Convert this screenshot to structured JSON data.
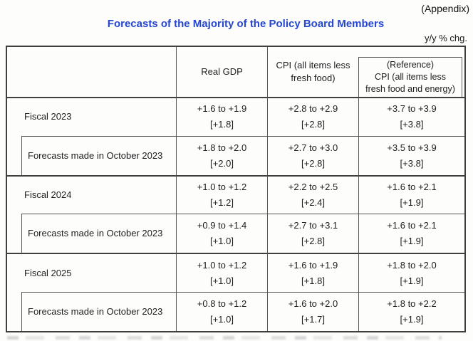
{
  "page": {
    "appendix_label": "(Appendix)",
    "title": "Forecasts of the Majority of the Policy Board Members",
    "unit_label": "y/y % chg.",
    "title_color": "#2546cf",
    "border_color": "#3f3f3f"
  },
  "table": {
    "headers": [
      {
        "lines": [
          "Real GDP"
        ]
      },
      {
        "lines": [
          "CPI (all items less",
          "fresh food)"
        ]
      },
      {
        "lines": [
          "(Reference)",
          "CPI (all items less",
          "fresh food and energy)"
        ],
        "boxed": true
      }
    ],
    "groups": [
      {
        "main": {
          "label": "Fiscal 2023",
          "values": [
            {
              "range": "+1.6 to +1.9",
              "median": "[+1.8]"
            },
            {
              "range": "+2.8 to +2.9",
              "median": "[+2.8]"
            },
            {
              "range": "+3.7 to +3.9",
              "median": "[+3.8]"
            }
          ]
        },
        "forecast": {
          "label": "Forecasts made in October 2023",
          "values": [
            {
              "range": "+1.8 to +2.0",
              "median": "[+2.0]"
            },
            {
              "range": "+2.7 to +3.0",
              "median": "[+2.8]"
            },
            {
              "range": "+3.5 to +3.9",
              "median": "[+3.8]"
            }
          ]
        }
      },
      {
        "main": {
          "label": "Fiscal 2024",
          "values": [
            {
              "range": "+1.0 to +1.2",
              "median": "[+1.2]"
            },
            {
              "range": "+2.2 to +2.5",
              "median": "[+2.4]"
            },
            {
              "range": "+1.6 to +2.1",
              "median": "[+1.9]"
            }
          ]
        },
        "forecast": {
          "label": "Forecasts made in October 2023",
          "values": [
            {
              "range": "+0.9 to +1.4",
              "median": "[+1.0]"
            },
            {
              "range": "+2.7 to +3.1",
              "median": "[+2.8]"
            },
            {
              "range": "+1.6 to +2.1",
              "median": "[+1.9]"
            }
          ]
        }
      },
      {
        "main": {
          "label": "Fiscal 2025",
          "values": [
            {
              "range": "+1.0 to +1.2",
              "median": "[+1.0]"
            },
            {
              "range": "+1.6 to +1.9",
              "median": "[+1.8]"
            },
            {
              "range": "+1.8 to +2.0",
              "median": "[+1.9]"
            }
          ]
        },
        "forecast": {
          "label": "Forecasts made in October 2023",
          "values": [
            {
              "range": "+0.8 to +1.2",
              "median": "[+1.0]"
            },
            {
              "range": "+1.6 to +2.0",
              "median": "[+1.7]"
            },
            {
              "range": "+1.8 to +2.2",
              "median": "[+1.9]"
            }
          ]
        }
      }
    ]
  }
}
